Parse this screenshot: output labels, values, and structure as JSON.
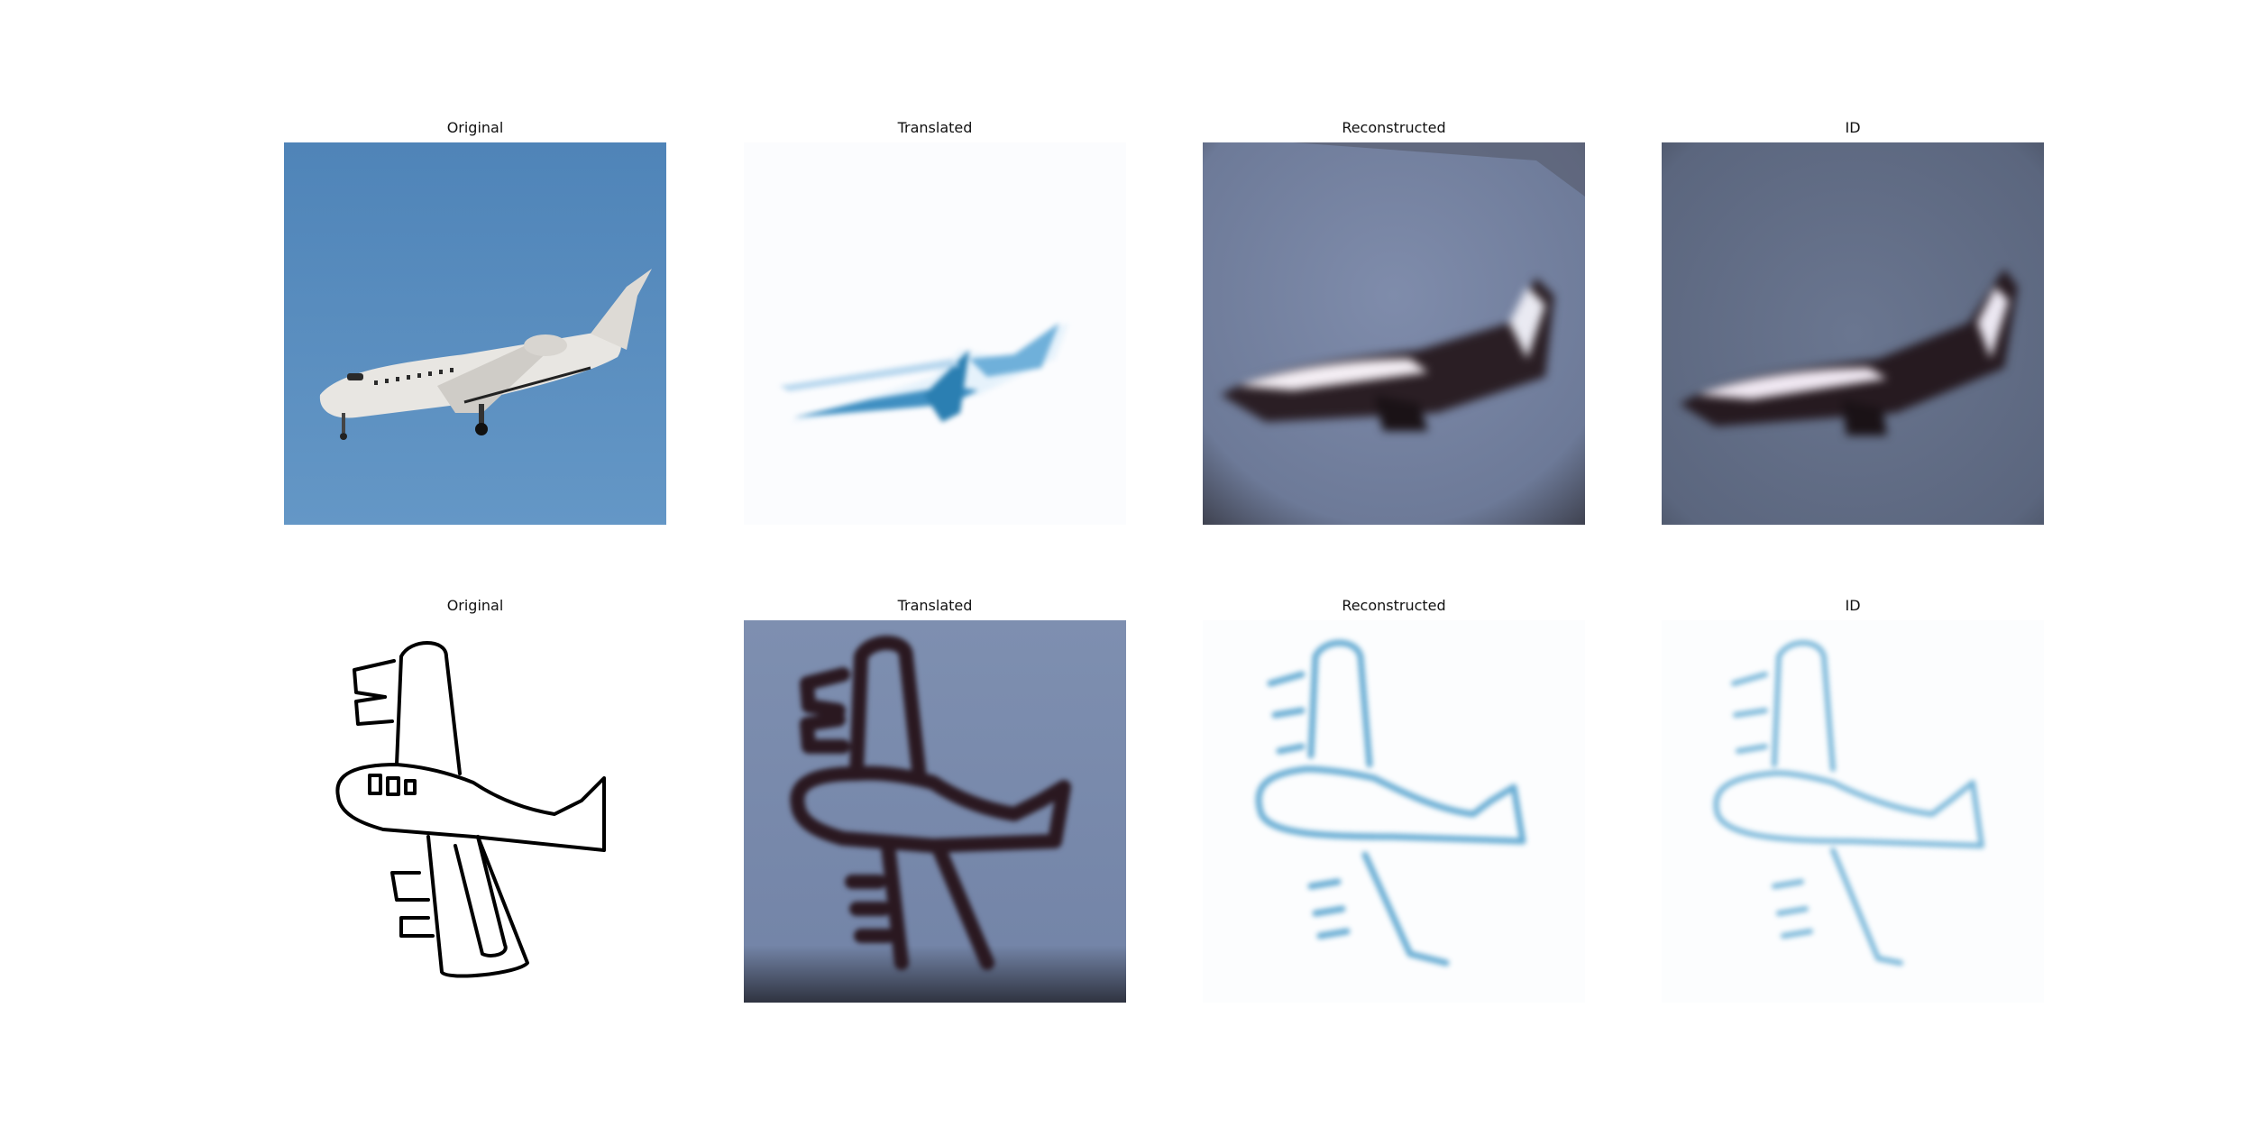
{
  "figure": {
    "rows": [
      {
        "panels": [
          {
            "title": "Original",
            "image": "photo-airplane-in-blue-sky"
          },
          {
            "title": "Translated",
            "image": "blurry-white-airplane-blue-streaks"
          },
          {
            "title": "Reconstructed",
            "image": "blurry-airplane-grey-blue-background"
          },
          {
            "title": "ID",
            "image": "blurry-airplane-grey-background"
          }
        ]
      },
      {
        "panels": [
          {
            "title": "Original",
            "image": "hand-drawn-airplane-sketch"
          },
          {
            "title": "Translated",
            "image": "blurry-dark-airplane-sketch-on-grey-blue"
          },
          {
            "title": "Reconstructed",
            "image": "faint-blue-airplane-sketch-on-white"
          },
          {
            "title": "ID",
            "image": "faint-blue-airplane-sketch-on-white"
          }
        ]
      }
    ]
  }
}
